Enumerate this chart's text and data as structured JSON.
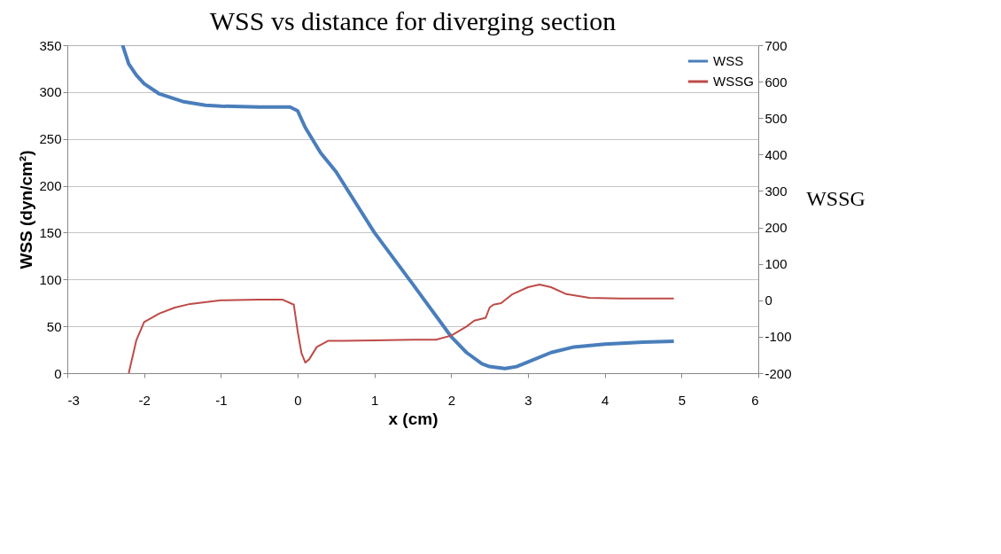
{
  "chart_data": {
    "type": "line",
    "title": "WSS vs distance for diverging section",
    "xlabel": "x (cm)",
    "ylabel": "WSS (dyn/cm²)",
    "y2label": "WSSG",
    "xlim": [
      -3,
      6
    ],
    "xticks": [
      -3,
      -2,
      -1,
      0,
      1,
      2,
      3,
      4,
      5,
      6
    ],
    "ylim": [
      0,
      350
    ],
    "yticks": [
      0,
      50,
      100,
      150,
      200,
      250,
      300,
      350
    ],
    "y2lim": [
      -200,
      700
    ],
    "y2ticks": [
      -200,
      -100,
      0,
      100,
      200,
      300,
      400,
      500,
      600,
      700
    ],
    "grid": "y",
    "legend": "top right",
    "marker": "none",
    "line_style": "solid",
    "series": [
      {
        "name": "WSS",
        "color": "#4a7ebb",
        "x": [
          -2.28,
          -2.2,
          -2.1,
          -2.0,
          -1.8,
          -1.5,
          -1.2,
          -1.0,
          -0.5,
          -0.1,
          0.0,
          0.1,
          0.3,
          0.5,
          1.0,
          1.5,
          2.0,
          2.2,
          2.4,
          2.5,
          2.7,
          2.85,
          3.0,
          3.3,
          3.6,
          4.0,
          4.5,
          4.9
        ],
        "values": [
          350,
          330,
          318,
          309,
          298,
          290,
          286,
          285,
          284,
          284,
          280,
          262,
          235,
          215,
          150,
          95,
          39,
          22,
          10,
          7,
          5,
          7,
          12,
          22,
          28,
          31,
          33,
          34
        ]
      },
      {
        "name": "WSSG",
        "color": "#be4b48",
        "axis": "y2",
        "x": [
          -2.2,
          -2.1,
          -2.0,
          -1.8,
          -1.6,
          -1.4,
          -1.0,
          -0.5,
          -0.2,
          -0.05,
          0.0,
          0.05,
          0.1,
          0.15,
          0.25,
          0.4,
          0.6,
          1.0,
          1.5,
          1.8,
          2.0,
          2.2,
          2.3,
          2.45,
          2.5,
          2.55,
          2.65,
          2.8,
          3.0,
          3.15,
          3.3,
          3.5,
          3.8,
          4.2,
          4.9
        ],
        "values": [
          -200,
          -109,
          -60,
          -36,
          -20,
          -10,
          0,
          2,
          2,
          -12,
          -85,
          -145,
          -171,
          -162,
          -128,
          -111,
          -111,
          -110,
          -108,
          -108,
          -97,
          -72,
          -56,
          -48,
          -20,
          -12,
          -8,
          17,
          36,
          43,
          36,
          17,
          7,
          5,
          5
        ]
      }
    ]
  }
}
